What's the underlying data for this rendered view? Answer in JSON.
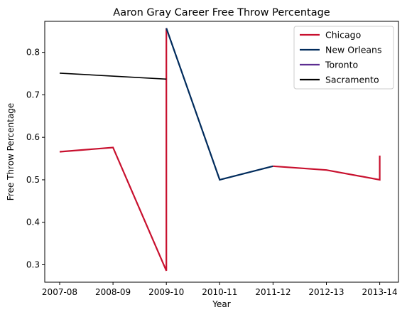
{
  "chart_data": {
    "type": "line",
    "title": "Aaron Gray Career Free Throw Percentage",
    "xlabel": "Year",
    "ylabel": "Free Throw Percentage",
    "categories": [
      "2007-08",
      "2008-09",
      "2009-10",
      "2010-11",
      "2011-12",
      "2012-13",
      "2013-14"
    ],
    "ylim": [
      0.259,
      0.873
    ],
    "yticks": [
      0.3,
      0.4,
      0.5,
      0.6,
      0.7,
      0.8
    ],
    "ytick_labels": [
      "0.3",
      "0.4",
      "0.5",
      "0.6",
      "0.7",
      "0.8"
    ],
    "grid": false,
    "legend_position": "top-right",
    "series": [
      {
        "name": "Chicago",
        "color": "#C8102E",
        "points": [
          {
            "x": "2007-08",
            "y": 0.566
          },
          {
            "x": "2008-09",
            "y": 0.576
          },
          {
            "x": "2009-10",
            "y": 0.286
          },
          {
            "x": "2009-10",
            "y": 0.857
          }
        ]
      },
      {
        "name": "New Orleans",
        "color": "#002B5C",
        "points": [
          {
            "x": "2009-10",
            "y": 0.857
          },
          {
            "x": "2010-11",
            "y": 0.5
          },
          {
            "x": "2011-12",
            "y": 0.532
          }
        ]
      },
      {
        "name": "Toronto",
        "color": "#5C2D91",
        "points": []
      },
      {
        "name": "Sacramento",
        "color": "#000000",
        "points": [
          {
            "x": "2007-08",
            "y": 0.751
          },
          {
            "x": "2009-10",
            "y": 0.737
          }
        ]
      },
      {
        "name": "",
        "color": "#C8102E",
        "points": [
          {
            "x": "2011-12",
            "y": 0.532
          },
          {
            "x": "2012-13",
            "y": 0.523
          },
          {
            "x": "2013-14",
            "y": 0.5
          },
          {
            "x": "2013-14",
            "y": 0.557
          }
        ]
      }
    ]
  }
}
